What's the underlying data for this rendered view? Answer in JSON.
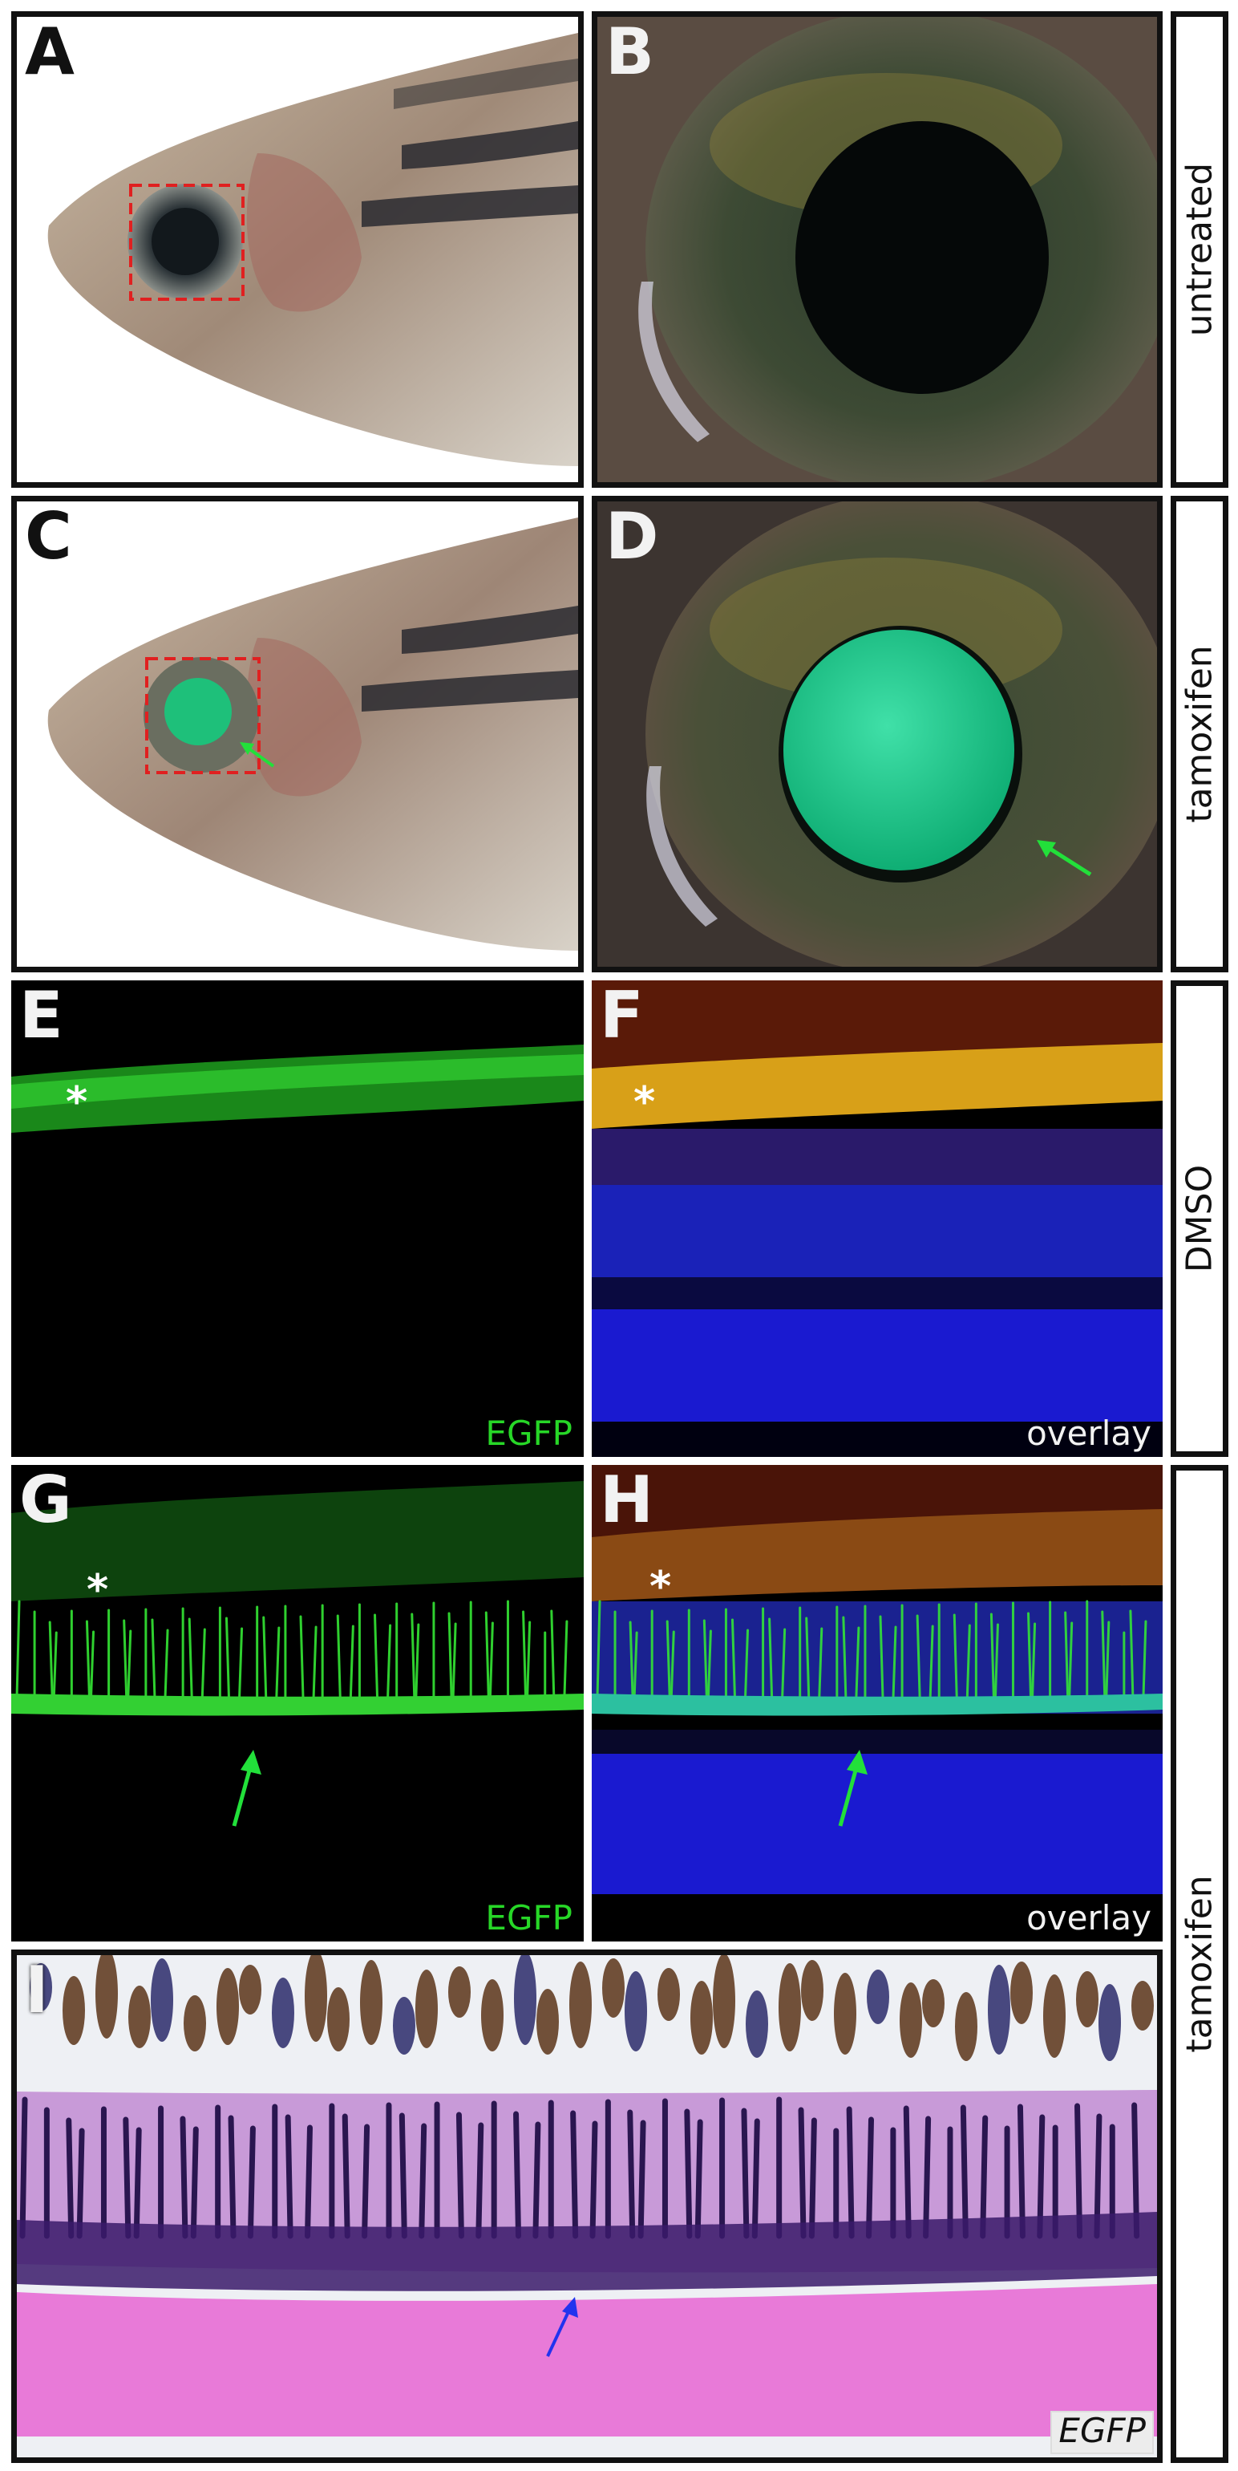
{
  "panels": {
    "A": {
      "letter": "A"
    },
    "B": {
      "letter": "B"
    },
    "C": {
      "letter": "C"
    },
    "D": {
      "letter": "D"
    },
    "E": {
      "letter": "E",
      "tag": "EGFP",
      "asterisk": "*"
    },
    "F": {
      "letter": "F",
      "tag": "overlay",
      "asterisk": "*"
    },
    "G": {
      "letter": "G",
      "tag": "EGFP",
      "asterisk": "*"
    },
    "H": {
      "letter": "H",
      "tag": "overlay",
      "asterisk": "*"
    },
    "I": {
      "letter": "I",
      "tag": "EGFP"
    }
  },
  "side_labels": {
    "untreated": "untreated",
    "tamoxifen_top": "tamoxifen",
    "dmso": "DMSO",
    "tamoxifen_bottom": "tamoxifen"
  },
  "colors": {
    "frame": "#111111",
    "egfp_green": "#27d727",
    "arrow_green": "#22e03a",
    "arrow_blue": "#2233ee",
    "roi_red": "#e02020",
    "nuclear_blue": "#1a1ad0",
    "stain_pink": "#e87ad8",
    "stain_purple": "#3a1a6a"
  }
}
